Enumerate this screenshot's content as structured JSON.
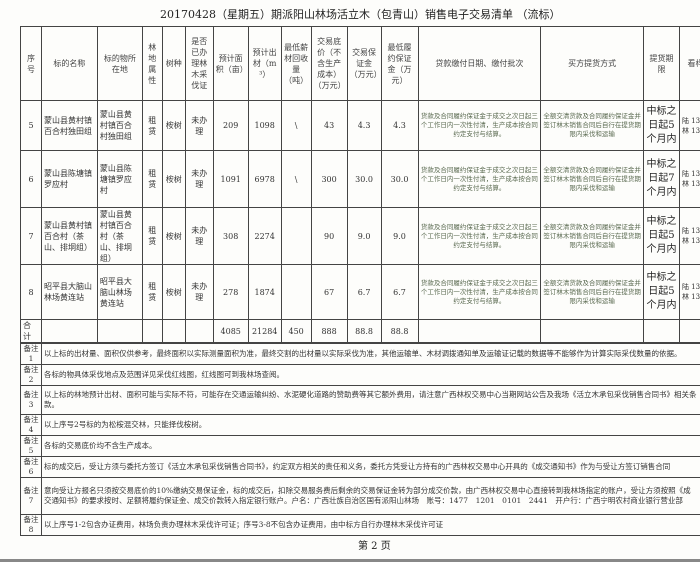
{
  "title": "20170428（星期五）期派阳山林场活立木（包青山）销售电子交易清单 （流标）",
  "headers": [
    "序号",
    "标的名称",
    "标的物所在地",
    "林地属性",
    "树种",
    "是否已办理林木采伐证",
    "预计面积（亩）",
    "预计出材（m³）",
    "最低薪材回收量（吨）",
    "交易底价（不含生产成本）（万元）",
    "交易保证金（万元）",
    "最低履约保证金（万元）",
    "贷款缴付日期、缴付批次",
    "买方提货方式",
    "提货期限",
    "看样联"
  ],
  "rows": [
    {
      "no": "5",
      "name": "蒙山县黄村镇百合村独田组",
      "location": "蒙山县黄村镇百合村独田组",
      "land": "租赁",
      "species": "桉树",
      "permit": "未办理",
      "area": "209",
      "volume": "1098",
      "firewood": "\\",
      "price": "43",
      "deposit": "4.3",
      "perf": "4.3",
      "payment": "货款及合同履约保证金于成交之次日起三个工作日内一次性付清，生产成本按合同约定支付与结算。",
      "pickup": "全额交清货款及合同履约保证金并签订林木销售合同后自行在提货期限内采伐和运输",
      "period": "中标之日起5个月内",
      "contact": "陆 1359 林 1359"
    },
    {
      "no": "6",
      "name": "蒙山县陈塘镇罗应村",
      "location": "蒙山县陈塘镇罗应村",
      "land": "租赁",
      "species": "桉树",
      "permit": "未办理",
      "area": "1091",
      "volume": "6978",
      "firewood": "\\",
      "price": "300",
      "deposit": "30.0",
      "perf": "30.0",
      "payment": "货款及合同履约保证金于成交之次日起三个工作日内一次性付清，生产成本按合同约定支付与结算。",
      "pickup": "全额交清货款及合同履约保证金并签订林木销售合同后自行在提货期限内采伐和运输",
      "period": "中标之日起7个月内",
      "contact": "陆 1359 林 1359"
    },
    {
      "no": "7",
      "name": "蒙山县黄村镇百合村（茶山、排垌组）",
      "location": "蒙山县黄村镇百合村（茶山、排垌组）",
      "land": "租赁",
      "species": "桉树",
      "permit": "未办理",
      "area": "308",
      "volume": "2274",
      "firewood": "",
      "price": "90",
      "deposit": "9.0",
      "perf": "9.0",
      "payment": "货款及合同履约保证金于成交之次日起三个工作日内一次性付清，生产成本按合同约定支付与结算。",
      "pickup": "全额交清货款及合同履约保证金并签订林木销售合同后自行在提货期限内采伐和运输",
      "period": "中标之日起5个月内",
      "contact": "陆 1359 林 1359"
    },
    {
      "no": "8",
      "name": "昭平县大脑山林场黄连站",
      "location": "昭平县大脑山林场黄连站",
      "land": "租赁",
      "species": "桉树",
      "permit": "未办理",
      "area": "278",
      "volume": "1874",
      "firewood": "",
      "price": "67",
      "deposit": "6.7",
      "perf": "6.7",
      "payment": "货款及合同履约保证金于成交之次日起三个工作日内一次性付清，生产成本按合同约定支付与结算。",
      "pickup": "全额交清货款及合同履约保证金并签订林木销售合同后自行在提货期限内采伐和运输",
      "period": "中标之日起5个月内",
      "contact": "陆 1359 林 1359"
    }
  ],
  "total": {
    "label": "合计",
    "area": "4085",
    "volume": "21284",
    "firewood": "450",
    "price": "888",
    "deposit": "88.8",
    "perf": "88.8"
  },
  "notes": [
    {
      "label": "备注1",
      "text": "以上标的出材量、面积仅供参考，最终面积以实际测量面积为准，最终交割的出材量以实际采伐为准，其他运输单、木材调拨通知单及运输证记载的数据等不能够作为计算实际采伐数量的依据。"
    },
    {
      "label": "备注2",
      "text": "各标的物具体采伐地点及范围详见采伐红线图，红线图可到我林场查阅。"
    },
    {
      "label": "备注3",
      "text": "以上标的林地预计出材、面积可能与实际不符，可能存在交通运输纠纷、水泥硬化道路的赞助费等其它额外费用，请注意广西林权交易中心当期网站公告及我场《活立木承包采伐销售合同书》相关条款。"
    },
    {
      "label": "备注4",
      "text": "以上序号2号标的为松桉混交林，只能择伐桉树。"
    },
    {
      "label": "备注5",
      "text": "各标的交易底价均不含生产成本。"
    },
    {
      "label": "备注6",
      "text": "标的成交后，受让方须与委托方签订《活立木承包采伐销售合同书》，约定双方相关的责任和义务，委托方凭受让方持有的广西林权交易中心开具的《成交通知书》作为与受让方签订销售合同"
    },
    {
      "label": "备注7",
      "text": "意向受让方报名只须按交易底价的10%缴纳交易保证金，标的成交后，扣除交易服务费后剩余的交易保证金转为部分成交价款，由广西林权交易中心直接转到我林场指定的账户，受让方须按照《成交通知书》的要求按时、足额将履约保证金、成交价款转入指定银行账户。户名：广西壮族自治区国有派阳山林场　账号：1477　1201　0101　2441　开户行：广西宁明农村商业银行营业部"
    },
    {
      "label": "备注8",
      "text": "以上序号1-2包含办证费用，林场负责办理林木采伐许可证；序号3-8不包含办证费用，由中标方自行办理林木采伐许可证"
    }
  ],
  "page": "第 2 页"
}
